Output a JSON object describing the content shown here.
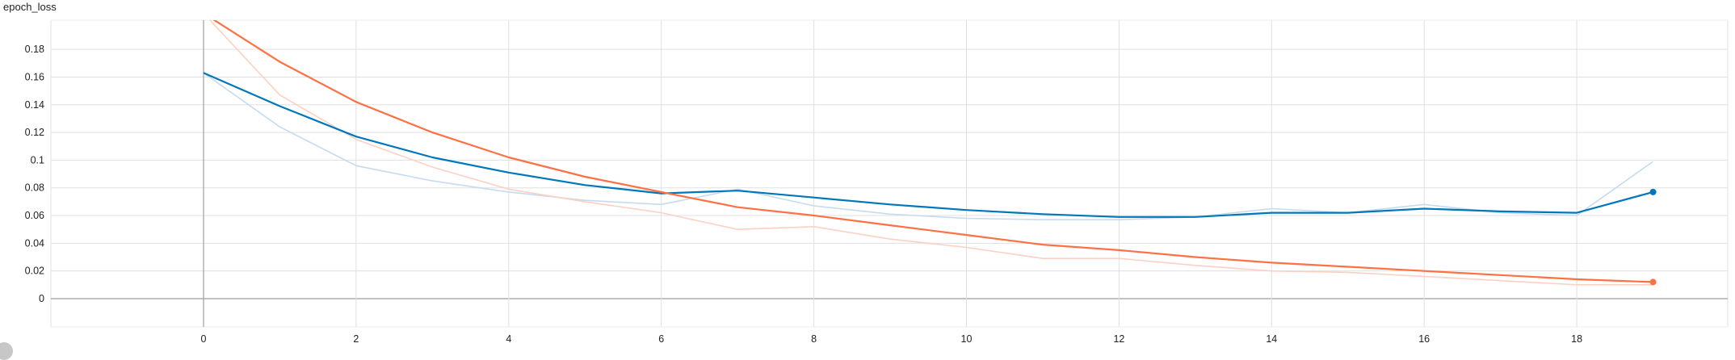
{
  "chart_data": {
    "type": "line",
    "title": "epoch_loss",
    "xlabel": "",
    "ylabel": "",
    "xlim": [
      -2,
      20.5
    ],
    "ylim": [
      -0.02,
      0.2
    ],
    "x_ticks": [
      "0",
      "2",
      "4",
      "6",
      "8",
      "10",
      "12",
      "14",
      "16",
      "18"
    ],
    "y_ticks": [
      "0",
      "0.02",
      "0.04",
      "0.06",
      "0.08",
      "0.1",
      "0.12",
      "0.14",
      "0.16",
      "0.18"
    ],
    "grid": true,
    "legend": "none",
    "x": [
      0,
      1,
      2,
      3,
      4,
      5,
      6,
      7,
      8,
      9,
      10,
      11,
      12,
      13,
      14,
      15,
      16,
      17,
      18,
      19
    ],
    "series": [
      {
        "color": "#0077bb",
        "raw_color": "#c6dbef",
        "smoothed": [
          0.163,
          0.139,
          0.117,
          0.102,
          0.091,
          0.082,
          0.076,
          0.078,
          0.073,
          0.068,
          0.064,
          0.061,
          0.059,
          0.059,
          0.062,
          0.062,
          0.065,
          0.063,
          0.062,
          0.077
        ],
        "raw": [
          0.163,
          0.124,
          0.096,
          0.085,
          0.077,
          0.071,
          0.068,
          0.079,
          0.067,
          0.061,
          0.058,
          0.057,
          0.057,
          0.059,
          0.065,
          0.062,
          0.068,
          0.062,
          0.06,
          0.099
        ]
      },
      {
        "color": "#ff7043",
        "raw_color": "#fdd0c2",
        "smoothed": [
          0.206,
          0.171,
          0.142,
          0.12,
          0.102,
          0.088,
          0.077,
          0.066,
          0.06,
          0.053,
          0.046,
          0.039,
          0.035,
          0.03,
          0.026,
          0.023,
          0.02,
          0.017,
          0.014,
          0.012
        ],
        "raw": [
          0.206,
          0.147,
          0.115,
          0.095,
          0.079,
          0.07,
          0.062,
          0.05,
          0.052,
          0.043,
          0.037,
          0.029,
          0.029,
          0.024,
          0.02,
          0.019,
          0.016,
          0.013,
          0.01,
          0.01
        ]
      }
    ]
  }
}
